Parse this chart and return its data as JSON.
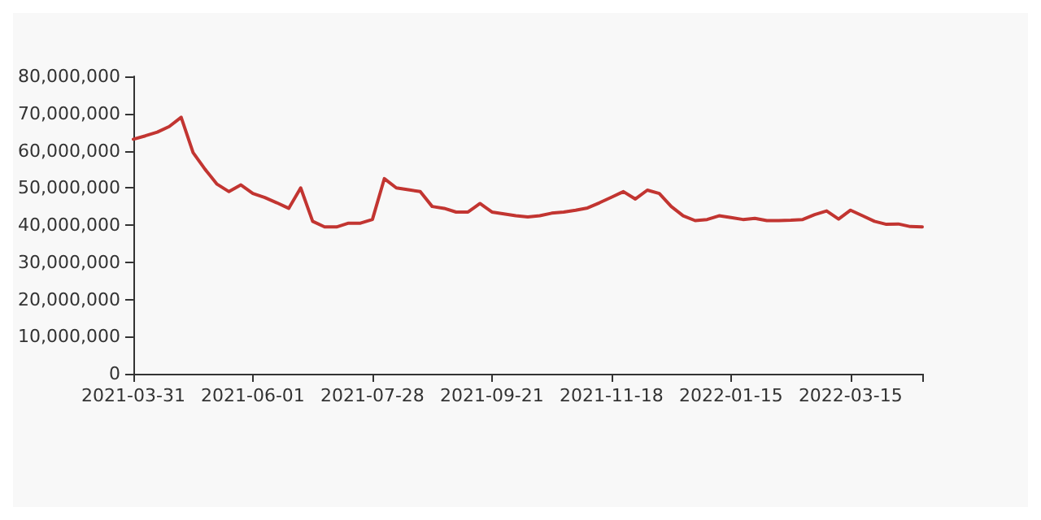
{
  "chart_data": {
    "type": "line",
    "categories": [
      "2021-03-31",
      null,
      null,
      null,
      null,
      null,
      null,
      null,
      null,
      null,
      "2021-06-01",
      null,
      null,
      null,
      null,
      null,
      null,
      null,
      null,
      null,
      "2021-07-28",
      null,
      null,
      null,
      null,
      null,
      null,
      null,
      null,
      null,
      "2021-09-21",
      null,
      null,
      null,
      null,
      null,
      null,
      null,
      null,
      null,
      "2021-11-18",
      null,
      null,
      null,
      null,
      null,
      null,
      null,
      null,
      null,
      "2022-01-15",
      null,
      null,
      null,
      null,
      null,
      null,
      null,
      null,
      null,
      "2022-03-15",
      null,
      null,
      null,
      null,
      null,
      null
    ],
    "series": [
      {
        "color": "#c23531",
        "values": [
          63100000,
          64000000,
          65000000,
          66500000,
          69000000,
          59500000,
          55000000,
          51000000,
          49000000,
          50800000,
          48500000,
          47400000,
          46000000,
          44500000,
          50000000,
          41000000,
          39500000,
          39500000,
          40500000,
          40500000,
          41500000,
          52500000,
          50000000,
          49500000,
          49000000,
          45000000,
          44500000,
          43500000,
          43500000,
          45800000,
          43500000,
          43000000,
          42500000,
          42200000,
          42500000,
          43200000,
          43500000,
          44000000,
          44600000,
          46000000,
          47500000,
          49000000,
          47000000,
          49400000,
          48500000,
          45000000,
          42500000,
          41200000,
          41500000,
          42500000,
          42000000,
          41500000,
          41800000,
          41200000,
          41200000,
          41300000,
          41500000,
          42800000,
          43800000,
          41600000,
          44000000,
          42500000,
          41000000,
          40200000,
          40300000,
          39600000,
          39500000
        ]
      }
    ],
    "ylim": [
      0,
      80000000
    ],
    "yticks": [
      0,
      {
        "value": 10000000,
        "label": "10,000,000"
      },
      {
        "value": 20000000,
        "label": "20,000,000"
      },
      {
        "value": 30000000,
        "label": "30,000,000"
      },
      {
        "value": 40000000,
        "label": "40,000,000"
      },
      {
        "value": 50000000,
        "label": "50,000,000"
      },
      {
        "value": 60000000,
        "label": "60,000,000"
      },
      {
        "value": 70000000,
        "label": "70,000,000"
      },
      {
        "value": 80000000,
        "label": "80,000,000"
      }
    ],
    "grid": false,
    "marker": "none",
    "line_style": "solid"
  }
}
